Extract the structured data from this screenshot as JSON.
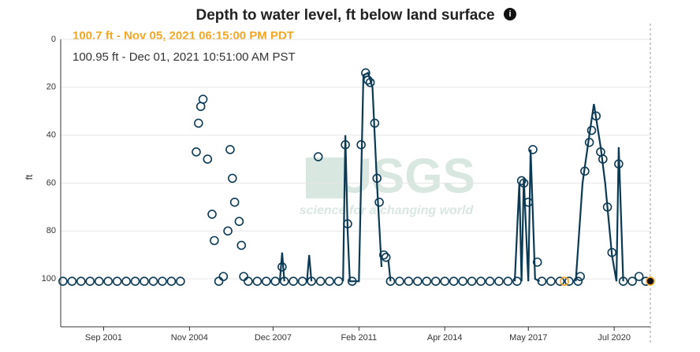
{
  "chart_data": {
    "type": "line",
    "title": "Depth to water level, ft below land surface",
    "annotations": [
      "100.7 ft - Nov 05, 2021 06:15:00 PM PDT",
      "100.95 ft - Dec 01, 2021 10:51:00 AM PST"
    ],
    "annotation_colors": [
      "#f5a623",
      "#333333"
    ],
    "y_label": "ft",
    "watermark": {
      "logo": "USGS",
      "tagline": "science for a changing world"
    },
    "xlim": [
      "2000-02",
      "2021-11"
    ],
    "xticks": [
      {
        "value": "2001-09",
        "label": "Sep 2001"
      },
      {
        "value": "2004-11",
        "label": "Nov 2004"
      },
      {
        "value": "2007-12",
        "label": "Dec 2007"
      },
      {
        "value": "2011-02",
        "label": "Feb 2011"
      },
      {
        "value": "2014-04",
        "label": "Apr 2014"
      },
      {
        "value": "2017-05",
        "label": "May 2017"
      },
      {
        "value": "2020-07",
        "label": "Jul 2020"
      }
    ],
    "ylim": [
      0,
      120
    ],
    "y_inverted": true,
    "yticks": [
      0,
      20,
      40,
      60,
      80,
      100
    ],
    "grid": true,
    "series": [
      {
        "mode": "markers",
        "color": "#0b3a55",
        "x": [
          "2000-03",
          "2000-07",
          "2000-11",
          "2001-03",
          "2001-07",
          "2001-11",
          "2002-03",
          "2002-07",
          "2002-11",
          "2003-03",
          "2003-07",
          "2003-11",
          "2004-03",
          "2004-07",
          "2005-02",
          "2005-03",
          "2005-04",
          "2005-05",
          "2005-07",
          "2005-09",
          "2005-10",
          "2005-12",
          "2006-02",
          "2006-04",
          "2006-05",
          "2006-06",
          "2006-07",
          "2006-09",
          "2006-10",
          "2006-11",
          "2007-01",
          "2007-05",
          "2007-09",
          "2008-01",
          "2008-04",
          "2008-05",
          "2008-09",
          "2009-01",
          "2009-05",
          "2009-08",
          "2009-09",
          "2010-01",
          "2010-05",
          "2010-08",
          "2010-09",
          "2010-11",
          "2011-03",
          "2011-05",
          "2011-06",
          "2011-07",
          "2011-09",
          "2011-10",
          "2011-11",
          "2012-01",
          "2012-02",
          "2012-04",
          "2012-08",
          "2012-12",
          "2013-04",
          "2013-08",
          "2013-12",
          "2014-04",
          "2014-08",
          "2014-12",
          "2015-04",
          "2015-08",
          "2015-12",
          "2016-04",
          "2016-08",
          "2016-12",
          "2017-02",
          "2017-03",
          "2017-05",
          "2017-07",
          "2017-09",
          "2017-11",
          "2018-03",
          "2018-07",
          "2018-11",
          "2019-03",
          "2019-04",
          "2019-06",
          "2019-08",
          "2019-09",
          "2019-11",
          "2020-01",
          "2020-02",
          "2020-04",
          "2020-06",
          "2020-09",
          "2020-11",
          "2021-03",
          "2021-06",
          "2021-09"
        ],
        "values": [
          101,
          101,
          101,
          101,
          101,
          101,
          101,
          101,
          101,
          101,
          101,
          101,
          101,
          101,
          47,
          35,
          28,
          25,
          50,
          73,
          84,
          101,
          99,
          80,
          46,
          58,
          68,
          76,
          86,
          99,
          101,
          101,
          101,
          101,
          95,
          101,
          101,
          101,
          101,
          49,
          101,
          101,
          101,
          44,
          77,
          101,
          44,
          14,
          17,
          18,
          35,
          58,
          68,
          90,
          91,
          101,
          101,
          101,
          101,
          101,
          101,
          101,
          101,
          101,
          101,
          101,
          101,
          101,
          101,
          101,
          59,
          60,
          68,
          46,
          93,
          101,
          101,
          101,
          101,
          101,
          99,
          55,
          43,
          38,
          32,
          47,
          50,
          70,
          89,
          52,
          101,
          101,
          99,
          101
        ]
      },
      {
        "mode": "lines",
        "color": "#0b3a55",
        "x": [
          "2008-03",
          "2008-04",
          "2008-05",
          "2008-06",
          "2009-03",
          "2009-04",
          "2009-05",
          "2009-06",
          "2010-07",
          "2010-08",
          "2010-09",
          "2010-10",
          "2011-02",
          "2011-04",
          "2011-06",
          "2011-08",
          "2011-10",
          "2011-12",
          "2012-01",
          "2012-03",
          "2012-04",
          "2012-05",
          "2016-11",
          "2017-01",
          "2017-02",
          "2017-03",
          "2017-05",
          "2017-06",
          "2017-08",
          "2017-10",
          "2017-11",
          "2019-02",
          "2019-05",
          "2019-08",
          "2019-10",
          "2020-01",
          "2020-03",
          "2020-06",
          "2020-08",
          "2020-09",
          "2020-11",
          "2020-12"
        ],
        "values": [
          101,
          89,
          101,
          null,
          101,
          90,
          101,
          null,
          101,
          40,
          80,
          101,
          101,
          15,
          14,
          20,
          60,
          95,
          null,
          92,
          101,
          null,
          101,
          60,
          101,
          58,
          101,
          46,
          100,
          101,
          null,
          101,
          60,
          40,
          27,
          45,
          60,
          90,
          101,
          45,
          101,
          null
        ]
      },
      {
        "mode": "markers",
        "color": "#f5a623",
        "x": [
          "2018-09"
        ],
        "values": [
          101
        ]
      },
      {
        "mode": "filled",
        "color": "#111111",
        "x": [
          "2021-11"
        ],
        "values": [
          100.95
        ]
      }
    ]
  }
}
